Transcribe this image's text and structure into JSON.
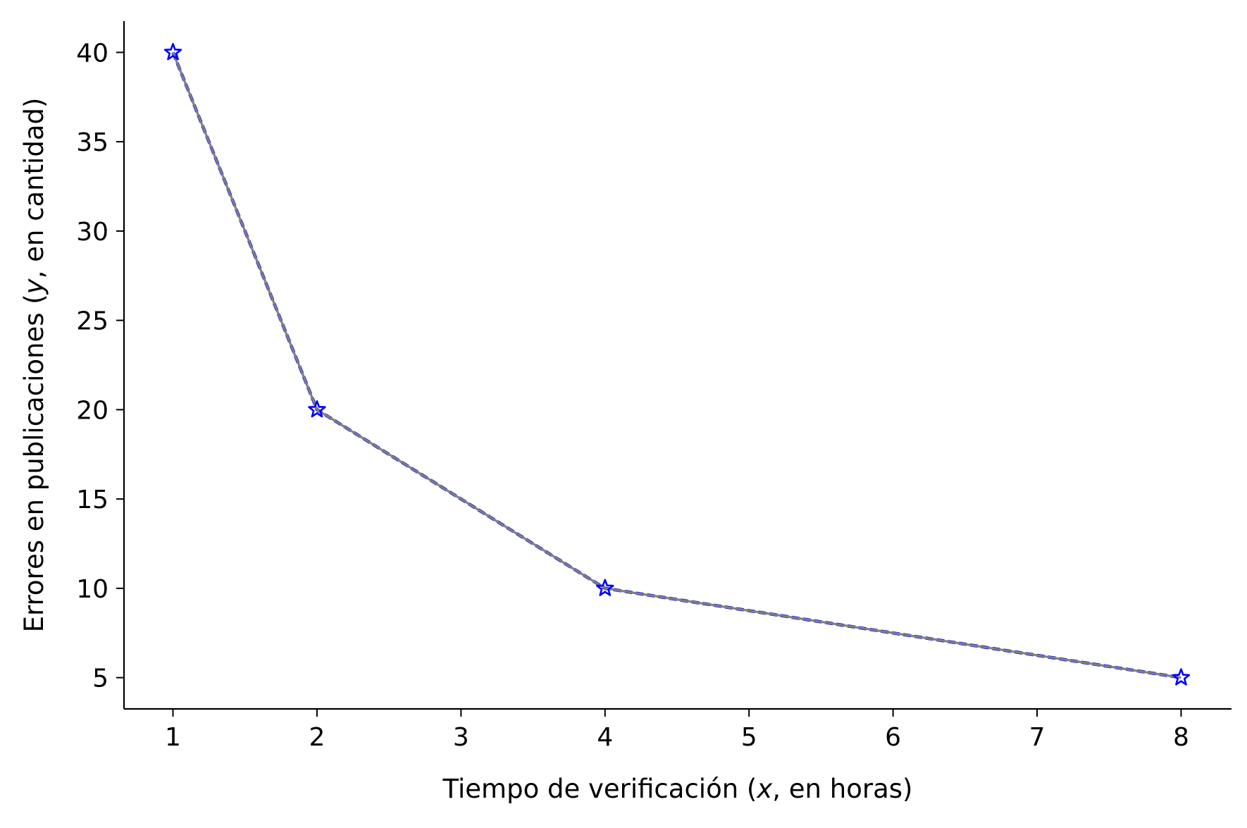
{
  "chart_data": {
    "type": "line",
    "title": "",
    "xlabel": {
      "prefix": "Tiempo de verificación (",
      "var": "x",
      "suffix": ", en horas)"
    },
    "ylabel": {
      "prefix": "Errores en publicaciones (",
      "var": "y",
      "suffix": ", en cantidad)"
    },
    "xlim": [
      0.66,
      8.35
    ],
    "ylim": [
      3.25,
      41.75
    ],
    "xticks": [
      1,
      2,
      3,
      4,
      5,
      6,
      7,
      8
    ],
    "yticks": [
      5,
      10,
      15,
      20,
      25,
      30,
      35,
      40
    ],
    "grid": false,
    "series": [
      {
        "x": [
          1,
          2,
          4,
          8
        ],
        "y": [
          40,
          20,
          10,
          5
        ],
        "line_color": "#808080",
        "overlay_color": "#0000ff",
        "marker": "star",
        "marker_color": "#0000ff"
      }
    ]
  }
}
